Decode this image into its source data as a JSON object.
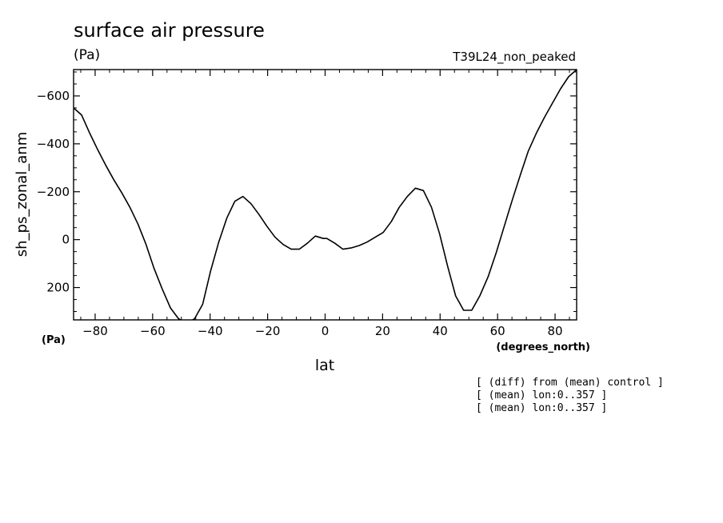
{
  "header": {
    "title": "surface air pressure",
    "units": "(Pa)",
    "run": "T39L24_non_peaked"
  },
  "notes": [
    "[ (diff) from (mean) control ]",
    "[ (mean) lon:0..357 ]",
    "[ (mean) lon:0..357 ]"
  ],
  "chart_data": {
    "type": "line",
    "xlabel": "lat",
    "xunits": "(degrees_north)",
    "ylabel": "sh_ps_zonal_anm",
    "yunits": "(Pa)",
    "xlim": [
      -87.5,
      87.5
    ],
    "ylim": [
      335,
      -710
    ],
    "y_inverted": true,
    "grid": false,
    "x_ticks": [
      -80,
      -60,
      -40,
      -20,
      0,
      20,
      40,
      60,
      80
    ],
    "x_tick_labels": [
      "−80",
      "−60",
      "−40",
      "−20",
      "0",
      "20",
      "40",
      "60",
      "80"
    ],
    "y_ticks": [
      -600,
      -400,
      -200,
      0,
      200
    ],
    "y_tick_labels": [
      "−600",
      "−400",
      "−200",
      "0",
      "200"
    ],
    "series": [
      {
        "color": "#000000",
        "x": [
          -87.5,
          -84.7,
          -81.9,
          -79.1,
          -76.3,
          -73.5,
          -70.7,
          -67.9,
          -65.1,
          -62.3,
          -59.5,
          -56.7,
          -53.8,
          -51.0,
          -48.2,
          -45.4,
          -42.6,
          -39.8,
          -37.0,
          -34.2,
          -31.4,
          -28.6,
          -25.8,
          -23.0,
          -20.2,
          -17.4,
          -14.6,
          -11.8,
          -9.0,
          -6.2,
          -3.4,
          -0.6,
          0.6,
          3.4,
          6.2,
          9.0,
          11.8,
          14.6,
          17.4,
          20.2,
          23.0,
          25.8,
          28.6,
          31.4,
          34.2,
          37.0,
          39.8,
          42.6,
          45.4,
          48.2,
          51.0,
          53.8,
          56.7,
          59.5,
          62.3,
          65.1,
          67.9,
          70.7,
          73.5,
          76.3,
          79.1,
          81.9,
          84.7,
          87.5
        ],
        "y": [
          -550,
          -520,
          -445,
          -375,
          -310,
          -250,
          -195,
          -135,
          -65,
          20,
          120,
          205,
          285,
          330,
          350,
          330,
          270,
          130,
          10,
          -90,
          -160,
          -180,
          -150,
          -105,
          -55,
          -10,
          20,
          40,
          40,
          15,
          -15,
          -5,
          -5,
          15,
          40,
          35,
          25,
          10,
          -10,
          -30,
          -75,
          -135,
          -180,
          -215,
          -205,
          -135,
          -25,
          110,
          235,
          295,
          295,
          235,
          155,
          55,
          -55,
          -165,
          -270,
          -370,
          -445,
          -510,
          -570,
          -630,
          -680,
          -710
        ]
      }
    ]
  }
}
